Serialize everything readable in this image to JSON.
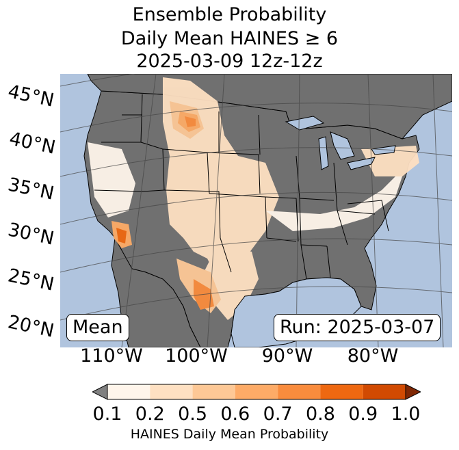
{
  "title": {
    "line1": "Ensemble Probability",
    "line2": "Daily Mean HAINES ≥ 6",
    "line3": "2025-03-09 12z-12z"
  },
  "labels": {
    "mean": "Mean",
    "run": "Run: 2025-03-07"
  },
  "latitude_ticks": [
    "45°N",
    "40°N",
    "35°N",
    "30°N",
    "25°N",
    "20°N"
  ],
  "longitude_ticks": [
    "110°W",
    "100°W",
    "90°W",
    "80°W"
  ],
  "colorbar": {
    "ticks": [
      "0.1",
      "0.2",
      "0.5",
      "0.6",
      "0.7",
      "0.8",
      "0.9",
      "1.0"
    ],
    "label": "HAINES Daily Mean Probability",
    "colors": [
      "#fff5eb",
      "#fee0c2",
      "#fdc896",
      "#fdab67",
      "#f98c3d",
      "#ee6811",
      "#d14a02"
    ],
    "under_color": "#808080",
    "over_color": "#7f2704"
  },
  "map_colors": {
    "ocean": "#b0c4de",
    "land_low": "#707070",
    "lakes": "#b0c4de"
  }
}
